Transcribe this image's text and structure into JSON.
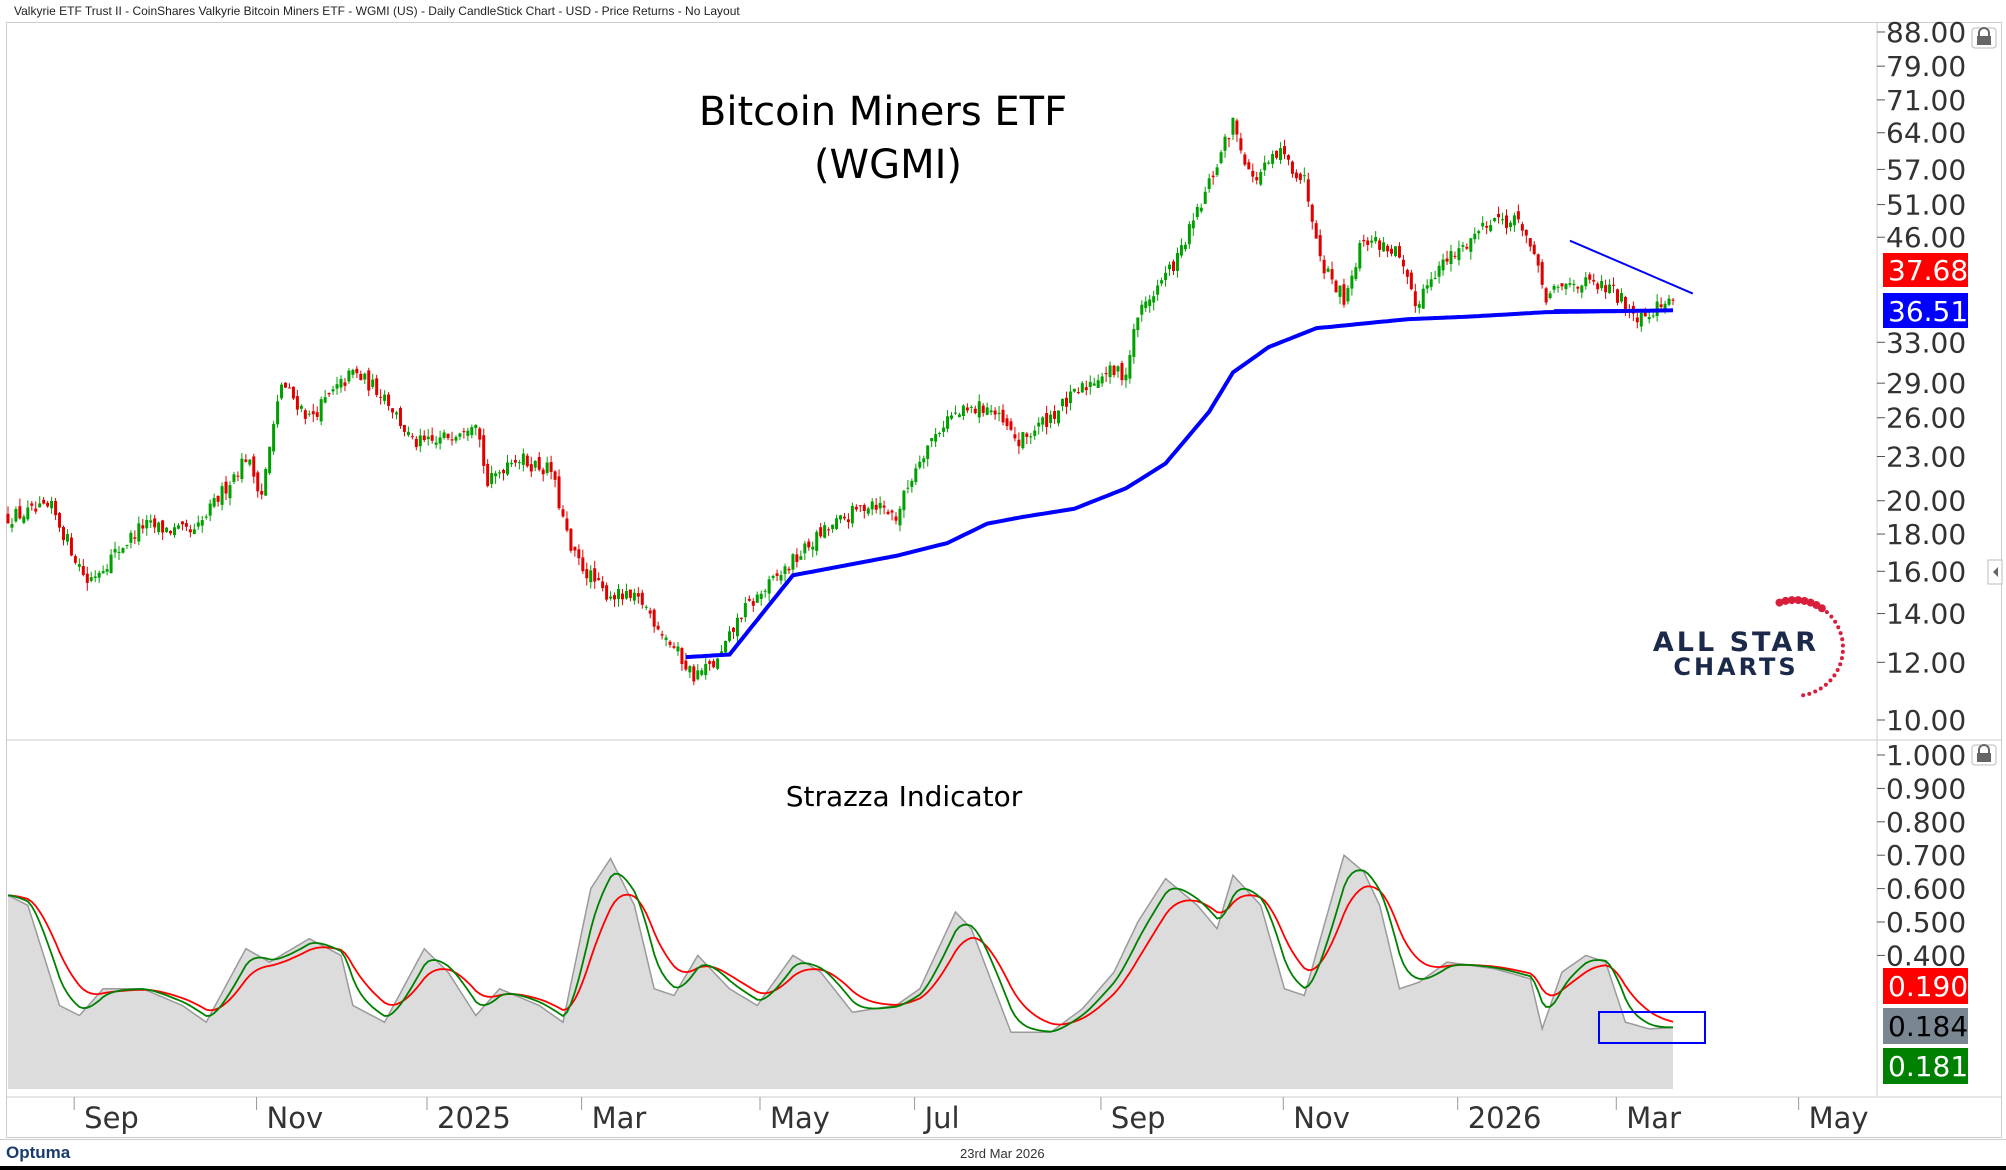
{
  "header": {
    "title": "Valkyrie ETF Trust II - CoinShares Valkyrie Bitcoin Miners ETF - WGMI (US) - Daily CandleStick Chart - USD - Price Returns - No Layout"
  },
  "footer": {
    "brand": "Optuma",
    "date": "23rd Mar 2026"
  },
  "logo": {
    "line1": "ALL STAR",
    "line2": "CHARTS"
  },
  "colors": {
    "up": "#00a000",
    "down": "#e00000",
    "ma": "#0000ff",
    "trend": "#0000ff",
    "green": "#008000",
    "red": "#ff0000",
    "gray": "#7a8793"
  },
  "chart_data": [
    {
      "type": "candlestick",
      "title": "Bitcoin Miners ETF",
      "subtitle": "(WGMI)",
      "yscale": "log",
      "ylim": [
        10,
        88
      ],
      "yticks": [
        "88.00",
        "79.00",
        "71.00",
        "64.00",
        "57.00",
        "51.00",
        "46.00",
        "33.00",
        "29.00",
        "26.00",
        "23.00",
        "20.00",
        "18.00",
        "16.00",
        "14.00",
        "12.00",
        "10.00"
      ],
      "ytick_values": [
        88,
        79,
        71,
        64,
        57,
        51,
        46,
        33,
        29,
        26,
        23,
        20,
        18,
        16,
        14,
        12,
        10
      ],
      "xticks": [
        {
          "label": "Sep",
          "day": 23
        },
        {
          "label": "Nov",
          "day": 69
        },
        {
          "label": "2025",
          "day": 112
        },
        {
          "label": "Mar",
          "day": 151
        },
        {
          "label": "May",
          "day": 196
        },
        {
          "label": "Jul",
          "day": 235
        },
        {
          "label": "Sep",
          "day": 282
        },
        {
          "label": "Nov",
          "day": 328
        },
        {
          "label": "2026",
          "day": 372
        },
        {
          "label": "Mar",
          "day": 412
        },
        {
          "label": "May",
          "day": 458
        }
      ],
      "total_days": 420,
      "price_anchors": [
        [
          0,
          19
        ],
        [
          11,
          19.5
        ],
        [
          20,
          15.5
        ],
        [
          34,
          18.5
        ],
        [
          47,
          18
        ],
        [
          60,
          23
        ],
        [
          64,
          20.5
        ],
        [
          69,
          29
        ],
        [
          76,
          26
        ],
        [
          87,
          30
        ],
        [
          95,
          28
        ],
        [
          102,
          24
        ],
        [
          108,
          24
        ],
        [
          118,
          26
        ],
        [
          121,
          21
        ],
        [
          127,
          23
        ],
        [
          137,
          22
        ],
        [
          142,
          17
        ],
        [
          150,
          15
        ],
        [
          160,
          14.5
        ],
        [
          166,
          13
        ],
        [
          173,
          11.5
        ],
        [
          179,
          12
        ],
        [
          185,
          14
        ],
        [
          198,
          16.5
        ],
        [
          205,
          18
        ],
        [
          218,
          20
        ],
        [
          224,
          19
        ],
        [
          230,
          23
        ],
        [
          237,
          26
        ],
        [
          247,
          27
        ],
        [
          255,
          24
        ],
        [
          266,
          27
        ],
        [
          276,
          30
        ],
        [
          282,
          30
        ],
        [
          285,
          36
        ],
        [
          295,
          43
        ],
        [
          301,
          51
        ],
        [
          306,
          60
        ],
        [
          309,
          66
        ],
        [
          314,
          55
        ],
        [
          321,
          60
        ],
        [
          327,
          55
        ],
        [
          332,
          42
        ],
        [
          337,
          38
        ],
        [
          342,
          46
        ],
        [
          350,
          44
        ],
        [
          355,
          37
        ],
        [
          359,
          41
        ],
        [
          366,
          44
        ],
        [
          374,
          49
        ],
        [
          382,
          48
        ],
        [
          388,
          38
        ],
        [
          395,
          40
        ],
        [
          404,
          39
        ],
        [
          411,
          36
        ],
        [
          420,
          37.68
        ]
      ],
      "moving_average": [
        [
          171,
          12.2
        ],
        [
          182,
          12.3
        ],
        [
          198,
          15.8
        ],
        [
          224,
          16.8
        ],
        [
          237,
          17.5
        ],
        [
          247,
          18.6
        ],
        [
          256,
          19.0
        ],
        [
          269,
          19.5
        ],
        [
          282,
          20.8
        ],
        [
          292,
          22.5
        ],
        [
          303,
          26.5
        ],
        [
          309,
          30
        ],
        [
          318,
          32.5
        ],
        [
          330,
          34.5
        ],
        [
          353,
          35.5
        ],
        [
          369,
          35.8
        ],
        [
          388,
          36.3
        ],
        [
          420,
          36.51
        ]
      ],
      "trendline": [
        [
          394,
          45.5
        ],
        [
          425,
          38.5
        ]
      ],
      "support_line": [
        [
          390,
          36.51
        ],
        [
          420,
          36.51
        ]
      ],
      "last_price": "37.68",
      "ma_value": "36.51"
    },
    {
      "type": "line",
      "title": "Strazza Indicator",
      "ylim": [
        0,
        1
      ],
      "yticks": [
        "1.000",
        "0.900",
        "0.800",
        "0.700",
        "0.600",
        "0.500",
        "0.400"
      ],
      "ytick_values": [
        1,
        0.9,
        0.8,
        0.7,
        0.6,
        0.5,
        0.4
      ],
      "gray_anchors": [
        [
          0,
          0.58
        ],
        [
          5,
          0.55
        ],
        [
          13,
          0.25
        ],
        [
          18,
          0.22
        ],
        [
          24,
          0.3
        ],
        [
          34,
          0.3
        ],
        [
          44,
          0.25
        ],
        [
          50,
          0.2
        ],
        [
          60,
          0.42
        ],
        [
          66,
          0.38
        ],
        [
          76,
          0.45
        ],
        [
          84,
          0.4
        ],
        [
          87,
          0.25
        ],
        [
          95,
          0.2
        ],
        [
          105,
          0.42
        ],
        [
          111,
          0.35
        ],
        [
          118,
          0.22
        ],
        [
          124,
          0.3
        ],
        [
          134,
          0.25
        ],
        [
          140,
          0.2
        ],
        [
          147,
          0.6
        ],
        [
          152,
          0.69
        ],
        [
          158,
          0.55
        ],
        [
          163,
          0.3
        ],
        [
          168,
          0.28
        ],
        [
          174,
          0.4
        ],
        [
          182,
          0.3
        ],
        [
          189,
          0.25
        ],
        [
          198,
          0.4
        ],
        [
          205,
          0.35
        ],
        [
          213,
          0.23
        ],
        [
          224,
          0.25
        ],
        [
          230,
          0.3
        ],
        [
          239,
          0.53
        ],
        [
          243,
          0.48
        ],
        [
          253,
          0.17
        ],
        [
          263,
          0.17
        ],
        [
          271,
          0.24
        ],
        [
          279,
          0.35
        ],
        [
          285,
          0.5
        ],
        [
          292,
          0.63
        ],
        [
          300,
          0.55
        ],
        [
          305,
          0.48
        ],
        [
          309,
          0.64
        ],
        [
          316,
          0.55
        ],
        [
          322,
          0.3
        ],
        [
          327,
          0.28
        ],
        [
          337,
          0.7
        ],
        [
          342,
          0.65
        ],
        [
          346,
          0.55
        ],
        [
          351,
          0.3
        ],
        [
          356,
          0.32
        ],
        [
          363,
          0.38
        ],
        [
          375,
          0.36
        ],
        [
          384,
          0.33
        ],
        [
          387,
          0.18
        ],
        [
          392,
          0.35
        ],
        [
          398,
          0.4
        ],
        [
          403,
          0.38
        ],
        [
          408,
          0.2
        ],
        [
          414,
          0.18
        ],
        [
          420,
          0.184
        ]
      ],
      "values": {
        "red": "0.190",
        "gray": "0.184",
        "green": "0.181"
      }
    }
  ]
}
